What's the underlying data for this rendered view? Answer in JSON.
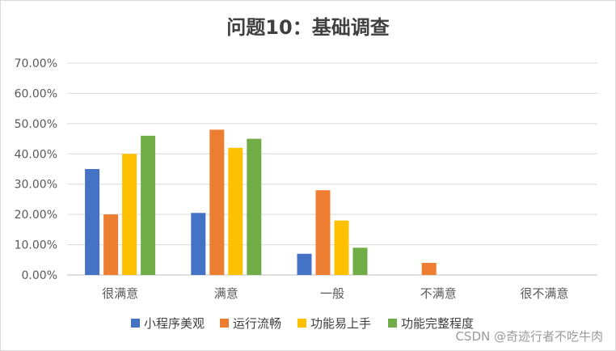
{
  "chart_data": {
    "type": "bar",
    "title": "问题10：基础调查",
    "categories": [
      "很满意",
      "满意",
      "一般",
      "不满意",
      "很不满意"
    ],
    "yticks": [
      "0.00%",
      "10.00%",
      "20.00%",
      "30.00%",
      "40.00%",
      "50.00%",
      "60.00%",
      "70.00%"
    ],
    "ylim": [
      0,
      70
    ],
    "grid": true,
    "legend_position": "bottom",
    "series": [
      {
        "name": "小程序美观",
        "color": "#4472c4",
        "values": [
          35,
          20.5,
          7,
          0,
          0
        ]
      },
      {
        "name": "运行流畅",
        "color": "#ed7d31",
        "values": [
          20,
          48,
          28,
          4,
          0
        ]
      },
      {
        "name": "功能易上手",
        "color": "#ffc000",
        "values": [
          40,
          42,
          18,
          0,
          0
        ]
      },
      {
        "name": "功能完整程度",
        "color": "#70ad47",
        "values": [
          46,
          45,
          9,
          0,
          0
        ]
      }
    ]
  },
  "watermark": "CSDN @奇迹行者不吃牛肉"
}
